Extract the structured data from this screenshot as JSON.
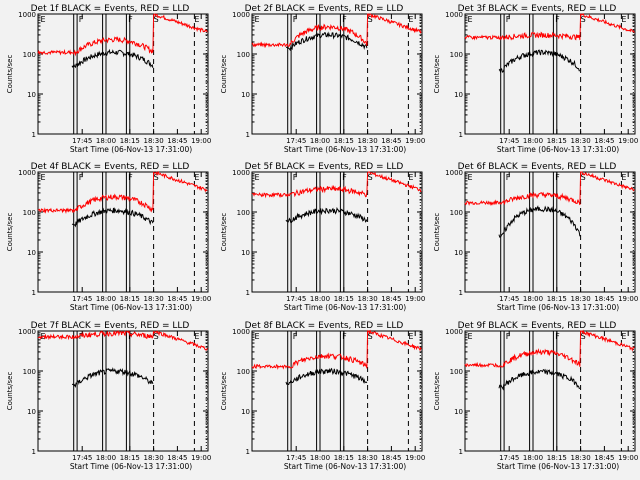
{
  "chart_data": [
    {
      "type": "line",
      "title": "Det 1f BLACK = Events, RED = LLD",
      "ylabel": "Counts/sec",
      "xlabel": "Start Time (06-Nov-13 17:31:00)",
      "yscale": "log",
      "ylim": [
        1,
        1000
      ],
      "yticks": [
        "1",
        "10",
        "100",
        "1000"
      ],
      "xticks": [
        "17:45",
        "18:00",
        "18:15",
        "18:30",
        "18:45",
        "19:00"
      ],
      "flags": [
        "E",
        "F",
        "F",
        "S",
        "E"
      ],
      "series": [
        {
          "name": "Events",
          "color": "#000000",
          "level": 50,
          "peak": 110
        },
        {
          "name": "LLD",
          "color": "#ff0000",
          "level": 110,
          "peak": 230
        }
      ]
    },
    {
      "type": "line",
      "title": "Det 2f BLACK = Events, RED = LLD",
      "ylabel": "Counts/sec",
      "xlabel": "Start Time (06-Nov-13 17:31:00)",
      "yscale": "log",
      "ylim": [
        1,
        1000
      ],
      "yticks": [
        "1",
        "10",
        "100",
        "1000"
      ],
      "xticks": [
        "17:45",
        "18:00",
        "18:15",
        "18:30",
        "18:45",
        "19:00"
      ],
      "flags": [
        "E",
        "F",
        "F",
        "S",
        "E"
      ],
      "series": [
        {
          "name": "Events",
          "color": "#000000",
          "level": 140,
          "peak": 300
        },
        {
          "name": "LLD",
          "color": "#ff0000",
          "level": 170,
          "peak": 480
        }
      ]
    },
    {
      "type": "line",
      "title": "Det 3f BLACK = Events, RED = LLD",
      "ylabel": "Counts/sec",
      "xlabel": "Start Time (06-Nov-13 17:31:00)",
      "yscale": "log",
      "ylim": [
        1,
        1000
      ],
      "yticks": [
        "1",
        "10",
        "100",
        "1000"
      ],
      "xticks": [
        "17:45",
        "18:00",
        "18:15",
        "18:30",
        "18:45",
        "19:00"
      ],
      "flags": [
        "E",
        "F",
        "F",
        "S",
        "E"
      ],
      "series": [
        {
          "name": "Events",
          "color": "#000000",
          "level": 40,
          "peak": 110
        },
        {
          "name": "LLD",
          "color": "#ff0000",
          "level": 260,
          "peak": 300
        }
      ]
    },
    {
      "type": "line",
      "title": "Det 4f BLACK = Events, RED = LLD",
      "ylabel": "Counts/sec",
      "xlabel": "Start Time (06-Nov-13 17:31:00)",
      "yscale": "log",
      "ylim": [
        1,
        1000
      ],
      "yticks": [
        "1",
        "10",
        "100",
        "1000"
      ],
      "xticks": [
        "17:45",
        "18:00",
        "18:15",
        "18:30",
        "18:45",
        "19:00"
      ],
      "flags": [
        "E",
        "F",
        "F",
        "S",
        "E"
      ],
      "series": [
        {
          "name": "Events",
          "color": "#000000",
          "level": 50,
          "peak": 110
        },
        {
          "name": "LLD",
          "color": "#ff0000",
          "level": 110,
          "peak": 240
        }
      ]
    },
    {
      "type": "line",
      "title": "Det 5f BLACK = Events, RED = LLD",
      "ylabel": "Counts/sec",
      "xlabel": "Start Time (06-Nov-13 17:31:00)",
      "yscale": "log",
      "ylim": [
        1,
        1000
      ],
      "yticks": [
        "1",
        "10",
        "100",
        "1000"
      ],
      "xticks": [
        "17:45",
        "18:00",
        "18:15",
        "18:30",
        "18:45",
        "19:00"
      ],
      "flags": [
        "E",
        "F",
        "F",
        "S",
        "E"
      ],
      "series": [
        {
          "name": "Events",
          "color": "#000000",
          "level": 60,
          "peak": 110
        },
        {
          "name": "LLD",
          "color": "#ff0000",
          "level": 270,
          "peak": 380
        }
      ]
    },
    {
      "type": "line",
      "title": "Det 6f BLACK = Events, RED = LLD",
      "ylabel": "Counts/sec",
      "xlabel": "Start Time (06-Nov-13 17:31:00)",
      "yscale": "log",
      "ylim": [
        1,
        1000
      ],
      "yticks": [
        "1",
        "10",
        "100",
        "1000"
      ],
      "xticks": [
        "17:45",
        "18:00",
        "18:15",
        "18:30",
        "18:45",
        "19:00"
      ],
      "flags": [
        "E",
        "F",
        "F",
        "S",
        "E"
      ],
      "series": [
        {
          "name": "Events",
          "color": "#000000",
          "level": 25,
          "peak": 120
        },
        {
          "name": "LLD",
          "color": "#ff0000",
          "level": 170,
          "peak": 270
        }
      ]
    },
    {
      "type": "line",
      "title": "Det 7f BLACK = Events, RED = LLD",
      "ylabel": "Counts/sec",
      "xlabel": "Start Time (06-Nov-13 17:31:00)",
      "yscale": "log",
      "ylim": [
        1,
        1000
      ],
      "yticks": [
        "1",
        "10",
        "100",
        "1000"
      ],
      "xticks": [
        "17:45",
        "18:00",
        "18:15",
        "18:30",
        "18:45",
        "19:00"
      ],
      "flags": [
        "E",
        "F",
        "F",
        "S",
        "E"
      ],
      "series": [
        {
          "name": "Events",
          "color": "#000000",
          "level": 45,
          "peak": 100
        },
        {
          "name": "LLD",
          "color": "#ff0000",
          "level": 720,
          "peak": 880
        }
      ]
    },
    {
      "type": "line",
      "title": "Det 8f BLACK = Events, RED = LLD",
      "ylabel": "Counts/sec",
      "xlabel": "Start Time (06-Nov-13 17:31:00)",
      "yscale": "log",
      "ylim": [
        1,
        1000
      ],
      "yticks": [
        "1",
        "10",
        "100",
        "1000"
      ],
      "xticks": [
        "17:45",
        "18:00",
        "18:15",
        "18:30",
        "18:45",
        "19:00"
      ],
      "flags": [
        "E",
        "F",
        "F",
        "S",
        "E"
      ],
      "series": [
        {
          "name": "Events",
          "color": "#000000",
          "level": 50,
          "peak": 100
        },
        {
          "name": "LLD",
          "color": "#ff0000",
          "level": 130,
          "peak": 240
        }
      ]
    },
    {
      "type": "line",
      "title": "Det 9f BLACK = Events, RED = LLD",
      "ylabel": "Counts/sec",
      "xlabel": "Start Time (06-Nov-13 17:31:00)",
      "yscale": "log",
      "ylim": [
        1,
        1000
      ],
      "yticks": [
        "1",
        "10",
        "100",
        "1000"
      ],
      "xticks": [
        "17:45",
        "18:00",
        "18:15",
        "18:30",
        "18:45",
        "19:00"
      ],
      "flags": [
        "E",
        "F",
        "F",
        "S",
        "E"
      ],
      "series": [
        {
          "name": "Events",
          "color": "#000000",
          "level": 40,
          "peak": 95
        },
        {
          "name": "LLD",
          "color": "#ff0000",
          "level": 140,
          "peak": 300
        }
      ]
    }
  ]
}
